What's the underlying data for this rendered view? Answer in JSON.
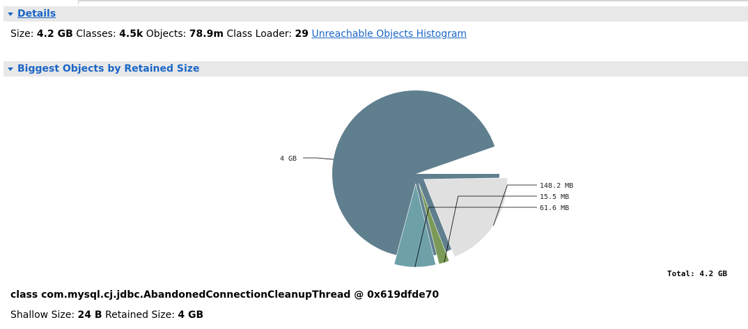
{
  "details": {
    "title": "Details",
    "size_label": "Size:",
    "size_value": "4.2 GB",
    "classes_label": "Classes:",
    "classes_value": "4.5k",
    "objects_label": "Objects:",
    "objects_value": "78.9m",
    "class_loader_label": "Class Loader:",
    "class_loader_value": "29",
    "histogram_link": "Unreachable Objects Histogram"
  },
  "biggest_objects": {
    "title": "Biggest Objects by Retained Size",
    "total_text": "Total: 4.2 GB"
  },
  "chart_data": {
    "type": "pie",
    "slices": [
      {
        "label": "4 GB",
        "value": 4000,
        "color": "#607f8e"
      },
      {
        "label": "148.2 MB",
        "value": 148.2,
        "color": "#e0e0e0"
      },
      {
        "label": "15.5 MB",
        "value": 15.5,
        "color": "#7b9a58"
      },
      {
        "label": "61.6 MB",
        "value": 61.6,
        "color": "#6ea0a8"
      }
    ],
    "total_label": "Total: 4.2 GB"
  },
  "selected_object": {
    "class_name": "class com.mysql.cj.jdbc.AbandonedConnectionCleanupThread @ 0x619dfde70",
    "shallow_label": "Shallow Size:",
    "shallow_value": "24 B",
    "retained_label": "Retained Size:",
    "retained_value": "4 GB"
  }
}
